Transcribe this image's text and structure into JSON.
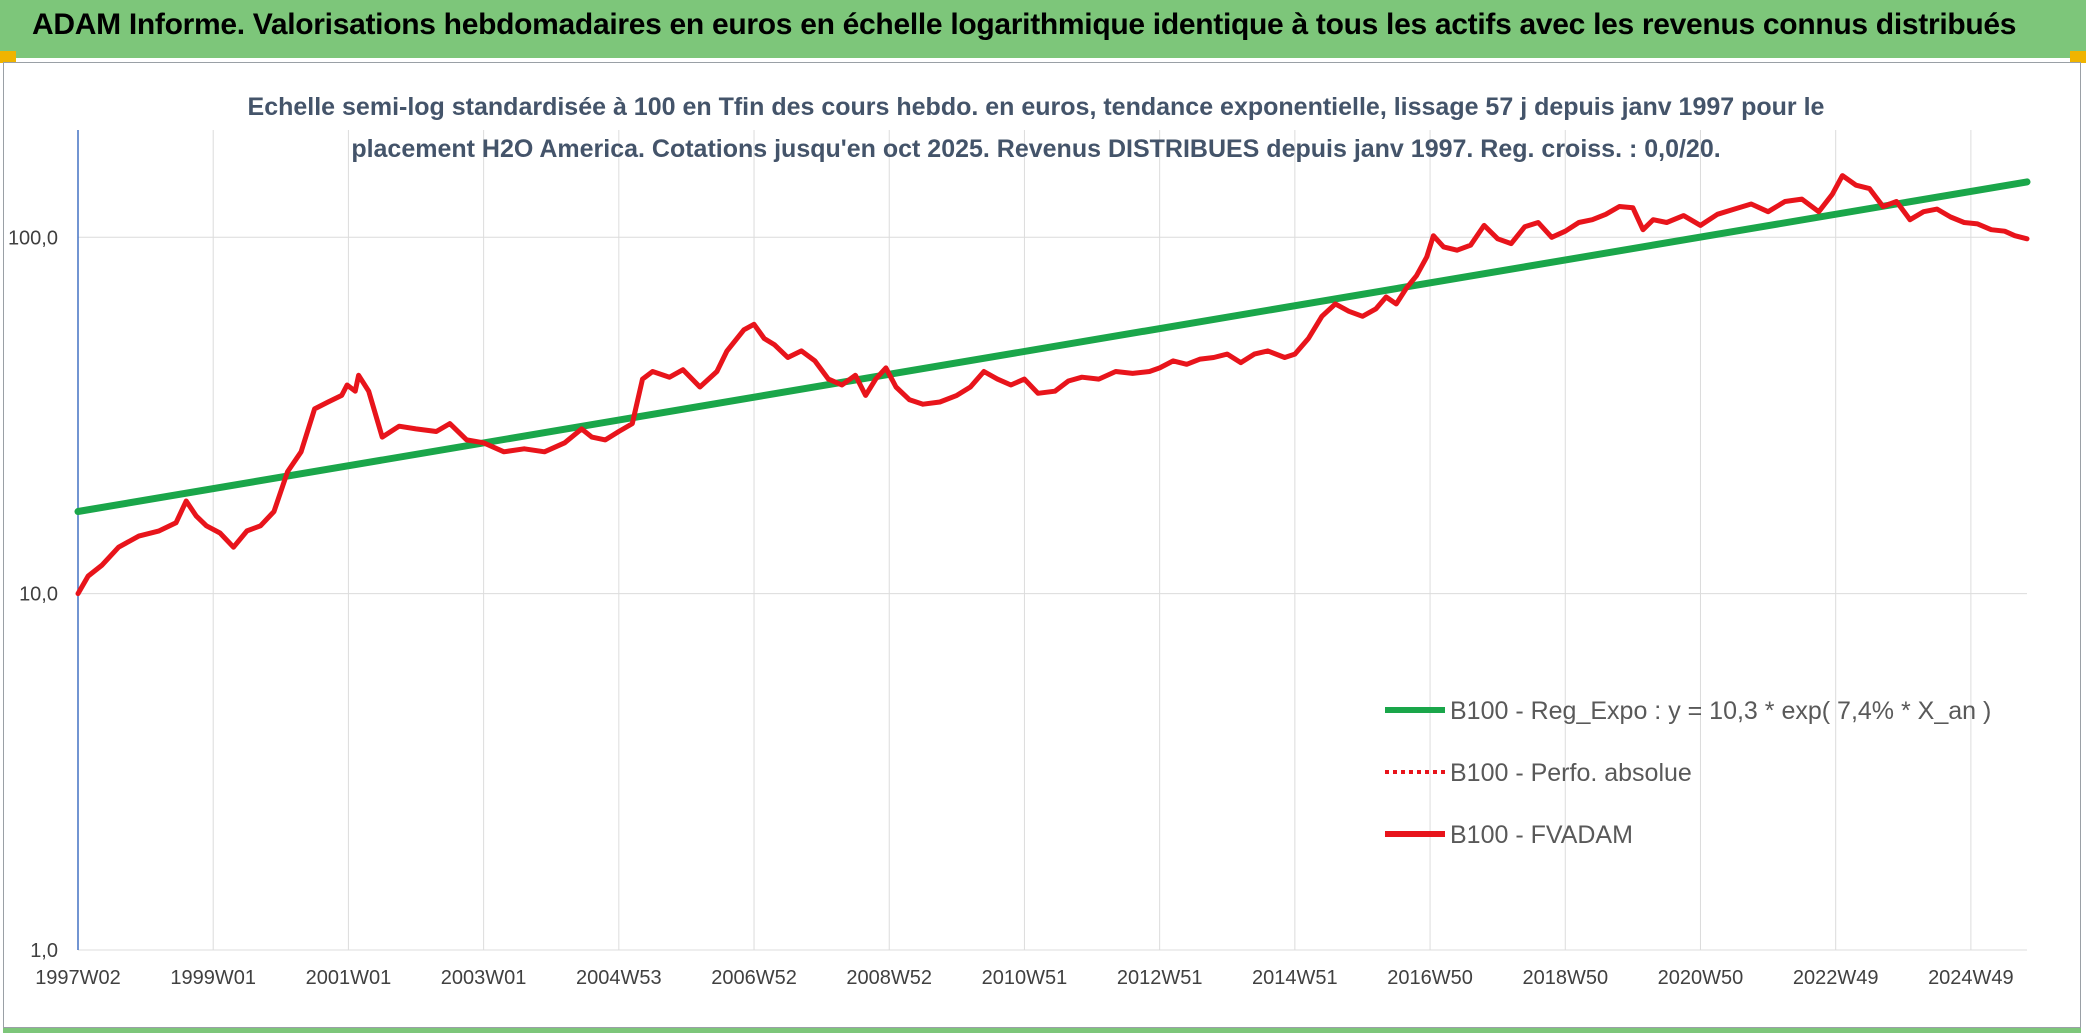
{
  "header": {
    "title": "ADAM Informe. Valorisations hebdomadaires en euros en échelle logarithmique identique à tous les actifs avec les revenus connus distribués"
  },
  "colors": {
    "banner": "#7dc67a",
    "accent": "#f0b400",
    "trend": "#1aa64a",
    "series": "#e8141b"
  },
  "chart_data": {
    "type": "line",
    "yscale": "log",
    "title_lines": [
      "Echelle semi-log standardisée à 100 en Tfin des cours hebdo. en euros, tendance exponentielle, lissage 57 j depuis janv 1997 pour le",
      "placement H2O America. Cotations jusqu'en oct 2025. Revenus DISTRIBUES depuis janv 1997. Reg. croiss. : 0,0/20."
    ],
    "ylim": [
      1,
      200
    ],
    "y_ticks": [
      {
        "value": 1,
        "label": "1,0"
      },
      {
        "value": 10,
        "label": "10,0"
      },
      {
        "value": 100,
        "label": "100,0"
      }
    ],
    "xlim": [
      1997.0,
      2025.83
    ],
    "x_ticks": [
      {
        "x": 1997.0,
        "label": "1997W02"
      },
      {
        "x": 1999.0,
        "label": "1999W01"
      },
      {
        "x": 2001.0,
        "label": "2001W01"
      },
      {
        "x": 2003.0,
        "label": "2003W01"
      },
      {
        "x": 2005.0,
        "label": "2004W53"
      },
      {
        "x": 2007.0,
        "label": "2006W52"
      },
      {
        "x": 2009.0,
        "label": "2008W52"
      },
      {
        "x": 2011.0,
        "label": "2010W51"
      },
      {
        "x": 2013.0,
        "label": "2012W51"
      },
      {
        "x": 2015.0,
        "label": "2014W51"
      },
      {
        "x": 2017.0,
        "label": "2016W50"
      },
      {
        "x": 2019.0,
        "label": "2018W50"
      },
      {
        "x": 2021.0,
        "label": "2020W50"
      },
      {
        "x": 2023.0,
        "label": "2022W49"
      },
      {
        "x": 2025.0,
        "label": "2024W49"
      }
    ],
    "legend": {
      "position": "bottom-right",
      "entries": [
        {
          "label": "B100 - Reg_Expo : y = 10,3 * exp( 7,4% *  X_an )",
          "style": "solid",
          "color": "#1aa64a"
        },
        {
          "label": "B100 - Perfo. absolue",
          "style": "dotted",
          "color": "#e8141b"
        },
        {
          "label": "B100 - FVADAM",
          "style": "solid",
          "color": "#e8141b"
        }
      ]
    },
    "series": [
      {
        "name": "B100 - Reg_Expo : y = 10,3 * exp( 7,4% *  X_an )",
        "color": "#1aa64a",
        "x": [
          1997.0,
          2025.83
        ],
        "y": [
          17.0,
          143
        ]
      },
      {
        "name": "B100 - FVADAM",
        "color": "#e8141b",
        "x": [
          1997.0,
          1997.15,
          1997.35,
          1997.6,
          1997.9,
          1998.2,
          1998.45,
          1998.6,
          1998.75,
          1998.9,
          1999.1,
          1999.3,
          1999.5,
          1999.7,
          1999.9,
          2000.1,
          2000.3,
          2000.5,
          2000.7,
          2000.9,
          2000.98,
          2001.1,
          2001.15,
          2001.3,
          2001.5,
          2001.75,
          2002.0,
          2002.3,
          2002.5,
          2002.75,
          2003.0,
          2003.3,
          2003.6,
          2003.9,
          2004.2,
          2004.45,
          2004.6,
          2004.8,
          2005.0,
          2005.2,
          2005.35,
          2005.5,
          2005.75,
          2005.95,
          2006.2,
          2006.45,
          2006.6,
          2006.85,
          2007.0,
          2007.15,
          2007.3,
          2007.5,
          2007.7,
          2007.9,
          2008.1,
          2008.3,
          2008.5,
          2008.65,
          2008.8,
          2008.95,
          2009.1,
          2009.3,
          2009.5,
          2009.75,
          2010.0,
          2010.2,
          2010.4,
          2010.6,
          2010.8,
          2011.0,
          2011.2,
          2011.45,
          2011.65,
          2011.85,
          2012.1,
          2012.35,
          2012.6,
          2012.85,
          2013.0,
          2013.2,
          2013.4,
          2013.6,
          2013.8,
          2014.0,
          2014.2,
          2014.4,
          2014.6,
          2014.85,
          2015.0,
          2015.2,
          2015.4,
          2015.6,
          2015.8,
          2016.0,
          2016.2,
          2016.35,
          2016.5,
          2016.65,
          2016.8,
          2016.95,
          2017.05,
          2017.2,
          2017.4,
          2017.6,
          2017.8,
          2018.0,
          2018.2,
          2018.4,
          2018.6,
          2018.8,
          2019.0,
          2019.2,
          2019.4,
          2019.6,
          2019.8,
          2020.0,
          2020.15,
          2020.3,
          2020.5,
          2020.75,
          2021.0,
          2021.25,
          2021.5,
          2021.75,
          2022.0,
          2022.25,
          2022.5,
          2022.75,
          2022.95,
          2023.1,
          2023.3,
          2023.5,
          2023.7,
          2023.9,
          2024.1,
          2024.3,
          2024.5,
          2024.7,
          2024.9,
          2025.1,
          2025.3,
          2025.5,
          2025.65,
          2025.83
        ],
        "y": [
          10.0,
          11.2,
          12.0,
          13.5,
          14.5,
          15.0,
          15.8,
          18.2,
          16.5,
          15.5,
          14.8,
          13.5,
          15.0,
          15.5,
          17.0,
          22.0,
          25.0,
          33.0,
          34.5,
          36.0,
          38.5,
          37.0,
          41.0,
          37.0,
          27.5,
          29.5,
          29.0,
          28.5,
          30.0,
          27.0,
          26.5,
          25.0,
          25.5,
          25.0,
          26.5,
          29.0,
          27.5,
          27.0,
          28.5,
          30.0,
          40.0,
          42.0,
          40.5,
          42.5,
          38.0,
          42.0,
          48.0,
          55.0,
          57.0,
          52.0,
          50.0,
          46.0,
          48.0,
          45.0,
          40.0,
          38.5,
          41.0,
          36.0,
          40.0,
          43.0,
          38.0,
          35.0,
          34.0,
          34.5,
          36.0,
          38.0,
          42.0,
          40.0,
          38.5,
          40.0,
          36.5,
          37.0,
          39.5,
          40.5,
          40.0,
          42.0,
          41.5,
          42.0,
          43.0,
          45.0,
          44.0,
          45.5,
          46.0,
          47.0,
          44.5,
          47.0,
          48.0,
          46.0,
          47.0,
          52.0,
          60.0,
          65.0,
          62.0,
          60.0,
          63.0,
          68.0,
          65.0,
          72.0,
          78.0,
          88.0,
          101.0,
          94.0,
          92.0,
          95.0,
          108.0,
          99.0,
          96.0,
          107.0,
          110.0,
          100.0,
          104.0,
          110.0,
          112.0,
          116.0,
          122.0,
          121.0,
          105.0,
          112.0,
          110.0,
          115.0,
          108.0,
          116.0,
          120.0,
          124.0,
          118.0,
          126.0,
          128.0,
          118.0,
          132.0,
          149.0,
          140.0,
          137.0,
          122.0,
          126.0,
          112.0,
          118.0,
          120.0,
          114.0,
          110.0,
          109.0,
          105.0,
          104.0,
          101.0,
          99.0
        ]
      }
    ]
  }
}
